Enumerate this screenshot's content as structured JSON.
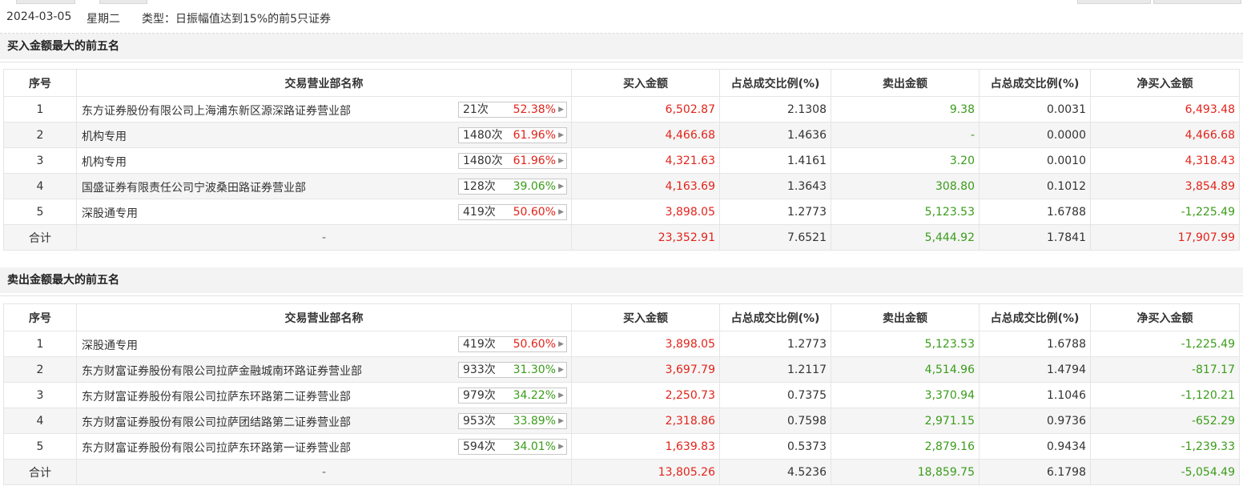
{
  "header": {
    "date": "2024-03-05",
    "weekday": "星期二",
    "type_label": "类型：日振幅值达到15%的前5只证券"
  },
  "columns": [
    "序号",
    "交易营业部名称",
    "买入金额",
    "占总成交比例(%)",
    "卖出金额",
    "占总成交比例(%)",
    "净买入金额"
  ],
  "buy_section": {
    "title": "买入金额最大的前五名",
    "rows": [
      {
        "idx": "1",
        "name": "东方证券股份有限公司上海浦东新区源深路证券营业部",
        "count": "21次",
        "pct": "52.38%",
        "pct_color": "red",
        "buy": "6,502.87",
        "buy_ratio": "2.1308",
        "sell": "9.38",
        "sell_ratio": "0.0031",
        "net": "6,493.48",
        "net_color": "red"
      },
      {
        "idx": "2",
        "name": "机构专用",
        "count": "1480次",
        "pct": "61.96%",
        "pct_color": "red",
        "buy": "4,466.68",
        "buy_ratio": "1.4636",
        "sell": "-",
        "sell_ratio": "0.0000",
        "net": "4,466.68",
        "net_color": "red"
      },
      {
        "idx": "3",
        "name": "机构专用",
        "count": "1480次",
        "pct": "61.96%",
        "pct_color": "red",
        "buy": "4,321.63",
        "buy_ratio": "1.4161",
        "sell": "3.20",
        "sell_ratio": "0.0010",
        "net": "4,318.43",
        "net_color": "red"
      },
      {
        "idx": "4",
        "name": "国盛证券有限责任公司宁波桑田路证券营业部",
        "count": "128次",
        "pct": "39.06%",
        "pct_color": "green",
        "buy": "4,163.69",
        "buy_ratio": "1.3643",
        "sell": "308.80",
        "sell_ratio": "0.1012",
        "net": "3,854.89",
        "net_color": "red"
      },
      {
        "idx": "5",
        "name": "深股通专用",
        "count": "419次",
        "pct": "50.60%",
        "pct_color": "red",
        "buy": "3,898.05",
        "buy_ratio": "1.2773",
        "sell": "5,123.53",
        "sell_ratio": "1.6788",
        "net": "-1,225.49",
        "net_color": "green"
      }
    ],
    "total": {
      "label": "合计",
      "name": "-",
      "buy": "23,352.91",
      "buy_ratio": "7.6521",
      "sell": "5,444.92",
      "sell_ratio": "1.7841",
      "net": "17,907.99",
      "net_color": "red"
    }
  },
  "sell_section": {
    "title": "卖出金额最大的前五名",
    "rows": [
      {
        "idx": "1",
        "name": "深股通专用",
        "count": "419次",
        "pct": "50.60%",
        "pct_color": "red",
        "buy": "3,898.05",
        "buy_ratio": "1.2773",
        "sell": "5,123.53",
        "sell_ratio": "1.6788",
        "net": "-1,225.49",
        "net_color": "green"
      },
      {
        "idx": "2",
        "name": "东方财富证券股份有限公司拉萨金融城南环路证券营业部",
        "count": "933次",
        "pct": "31.30%",
        "pct_color": "green",
        "buy": "3,697.79",
        "buy_ratio": "1.2117",
        "sell": "4,514.96",
        "sell_ratio": "1.4794",
        "net": "-817.17",
        "net_color": "green"
      },
      {
        "idx": "3",
        "name": "东方财富证券股份有限公司拉萨东环路第二证券营业部",
        "count": "979次",
        "pct": "34.22%",
        "pct_color": "green",
        "buy": "2,250.73",
        "buy_ratio": "0.7375",
        "sell": "3,370.94",
        "sell_ratio": "1.1046",
        "net": "-1,120.21",
        "net_color": "green"
      },
      {
        "idx": "4",
        "name": "东方财富证券股份有限公司拉萨团结路第二证券营业部",
        "count": "953次",
        "pct": "33.89%",
        "pct_color": "green",
        "buy": "2,318.86",
        "buy_ratio": "0.7598",
        "sell": "2,971.15",
        "sell_ratio": "0.9736",
        "net": "-652.29",
        "net_color": "green"
      },
      {
        "idx": "5",
        "name": "东方财富证券股份有限公司拉萨东环路第一证券营业部",
        "count": "594次",
        "pct": "34.01%",
        "pct_color": "green",
        "buy": "1,639.83",
        "buy_ratio": "0.5373",
        "sell": "2,879.16",
        "sell_ratio": "0.9434",
        "net": "-1,239.33",
        "net_color": "green"
      }
    ],
    "total": {
      "label": "合计",
      "name": "-",
      "buy": "13,805.26",
      "buy_ratio": "4.5236",
      "sell": "18,859.75",
      "sell_ratio": "6.1798",
      "net": "-5,054.49",
      "net_color": "green"
    }
  },
  "colors": {
    "up": "#e2231a",
    "down": "#3a9c1a"
  }
}
